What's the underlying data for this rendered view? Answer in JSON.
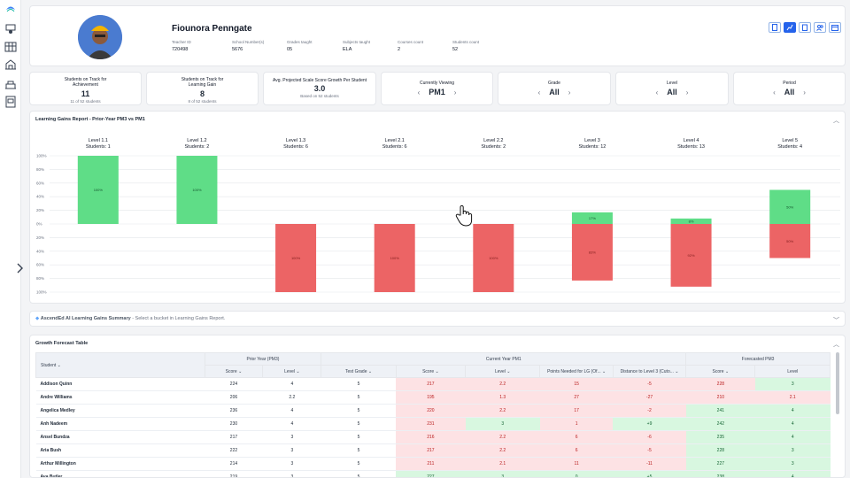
{
  "teacher": {
    "name": "Fiounora Penngate",
    "meta": [
      {
        "label": "Teacher ID",
        "value": "720498"
      },
      {
        "label": "School Number(s)",
        "value": "5676"
      },
      {
        "label": "Grades taught",
        "value": "05"
      },
      {
        "label": "Subjects taught",
        "value": "ELA"
      },
      {
        "label": "Courses count",
        "value": "2"
      },
      {
        "label": "Students count",
        "value": "52"
      }
    ]
  },
  "summary": {
    "achievement": {
      "label": "Students on Track for Achievement",
      "value": "11",
      "sub": "11 of 52 students"
    },
    "learning_gain": {
      "label": "Students on Track for Learning Gain",
      "value": "8",
      "sub": "8 of 52 students"
    },
    "growth": {
      "label": "Avg. Projected Scale Score Growth Per Student",
      "value": "3.0",
      "sub": "Based on 52 students"
    }
  },
  "filters": {
    "viewing": {
      "label": "Currently Viewing",
      "value": "PM1"
    },
    "grade": {
      "label": "Grade",
      "value": "All"
    },
    "level": {
      "label": "Level",
      "value": "All"
    },
    "period": {
      "label": "Period",
      "value": "All"
    }
  },
  "chart_panel_title": "Learning Gains Report - Prior-Year PM3 vs PM1",
  "chart_data": {
    "type": "bar",
    "title": "Learning Gains Report - Prior-Year PM3 vs PM1",
    "categories": [
      "Level 1.1",
      "Level 1.2",
      "Level 1.3",
      "Level 2.1",
      "Level 2.2",
      "Level 3",
      "Level 4",
      "Level 5"
    ],
    "students": [
      "Students: 1",
      "Students: 2",
      "Students: 6",
      "Students: 6",
      "Students: 2",
      "Students: 12",
      "Students: 13",
      "Students: 4"
    ],
    "series": [
      {
        "values": [
          100,
          100,
          0,
          0,
          0,
          17,
          8,
          50
        ],
        "color": "#5fdd87"
      },
      {
        "values": [
          0,
          0,
          -100,
          -100,
          -100,
          -83,
          -92,
          -50
        ],
        "color": "#ec6465"
      }
    ],
    "ylim": [
      -100,
      100
    ],
    "yticks": [
      "100%",
      "80%",
      "60%",
      "40%",
      "20%",
      "0%",
      "20%",
      "40%",
      "60%",
      "80%",
      "100%"
    ],
    "grid": true
  },
  "ai_summary": {
    "title": "AscendEd AI Learning Gains Summary",
    "hint": "- Select a bucket in Learning Gains Report."
  },
  "forecast": {
    "title": "Growth Forecast Table",
    "groups": [
      "Prior Year (PM3)",
      "Current Year PM1",
      "Forecasted PM3"
    ],
    "columns": [
      "Student",
      "Score",
      "Level",
      "Test Grade",
      "Score",
      "Level",
      "Points Needed for LG (Of...",
      "Distance to Level 3 (Cuto...",
      "Score",
      "Level"
    ],
    "rows": [
      [
        "Addison Quinn",
        "224",
        "4",
        "5",
        "217",
        "2.2",
        "15",
        "-5",
        "228",
        "3"
      ],
      [
        "Andre Williams",
        "206",
        "2.2",
        "5",
        "195",
        "1.3",
        "27",
        "-27",
        "210",
        "2.1"
      ],
      [
        "Angelica Medley",
        "236",
        "4",
        "5",
        "220",
        "2.2",
        "17",
        "-2",
        "241",
        "4"
      ],
      [
        "Anh Nadeem",
        "230",
        "4",
        "5",
        "231",
        "3",
        "1",
        "+9",
        "242",
        "4"
      ],
      [
        "Ansel Bundza",
        "217",
        "3",
        "5",
        "216",
        "2.2",
        "6",
        "-6",
        "235",
        "4"
      ],
      [
        "Aria Bush",
        "222",
        "3",
        "5",
        "217",
        "2.2",
        "6",
        "-5",
        "228",
        "3"
      ],
      [
        "Arthur Millington",
        "214",
        "3",
        "5",
        "211",
        "2.1",
        "11",
        "-11",
        "227",
        "3"
      ],
      [
        "Ava Butler",
        "219",
        "3",
        "5",
        "227",
        "3",
        "0",
        "+5",
        "238",
        "4"
      ]
    ],
    "row_colors": [
      [
        "",
        "",
        "",
        "",
        "red",
        "red",
        "red",
        "red",
        "red",
        "grn"
      ],
      [
        "",
        "",
        "",
        "",
        "red",
        "red",
        "red",
        "red",
        "red",
        "red"
      ],
      [
        "",
        "",
        "",
        "",
        "red",
        "red",
        "red",
        "red",
        "grn",
        "grn"
      ],
      [
        "",
        "",
        "",
        "",
        "red",
        "grn",
        "red",
        "grn",
        "grn",
        "grn"
      ],
      [
        "",
        "",
        "",
        "",
        "red",
        "red",
        "red",
        "red",
        "grn",
        "grn"
      ],
      [
        "",
        "",
        "",
        "",
        "red",
        "red",
        "red",
        "red",
        "grn",
        "grn"
      ],
      [
        "",
        "",
        "",
        "",
        "red",
        "red",
        "red",
        "red",
        "grn",
        "grn"
      ],
      [
        "",
        "",
        "",
        "",
        "grn",
        "grn",
        "grn",
        "grn",
        "grn",
        "grn"
      ]
    ]
  }
}
